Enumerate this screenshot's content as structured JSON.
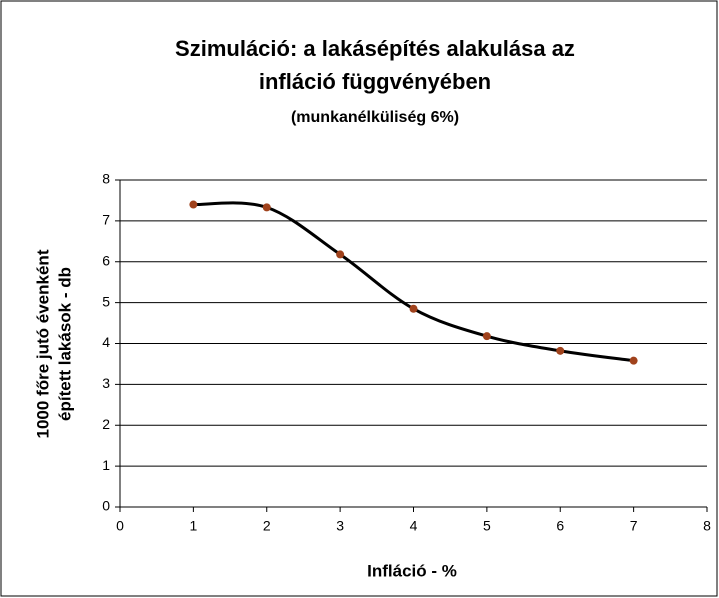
{
  "chart_data": {
    "type": "scatter",
    "title": [
      "Szimuláció: a lakásépítés alakulása az",
      "infláció függvényében"
    ],
    "subtitle": "(munkanélküliség 6%)",
    "x_label": "Infláció - %",
    "y_label": [
      "1000 főre jutó évenként",
      "épített lakások - db"
    ],
    "series": [
      {
        "name": "Lakásépítés",
        "color": "#a0421c",
        "line_color": "#000000",
        "smooth": true,
        "x": [
          1,
          2,
          3,
          4,
          5,
          6,
          7
        ],
        "values": [
          7.4,
          7.33,
          6.18,
          4.85,
          4.18,
          3.82,
          3.58
        ]
      }
    ],
    "xlim": [
      0,
      8
    ],
    "xticks": [
      0,
      1,
      2,
      3,
      4,
      5,
      6,
      7,
      8
    ],
    "ylim": [
      0,
      8
    ],
    "yticks": [
      0,
      1,
      2,
      3,
      4,
      5,
      6,
      7,
      8
    ],
    "grid": true
  }
}
